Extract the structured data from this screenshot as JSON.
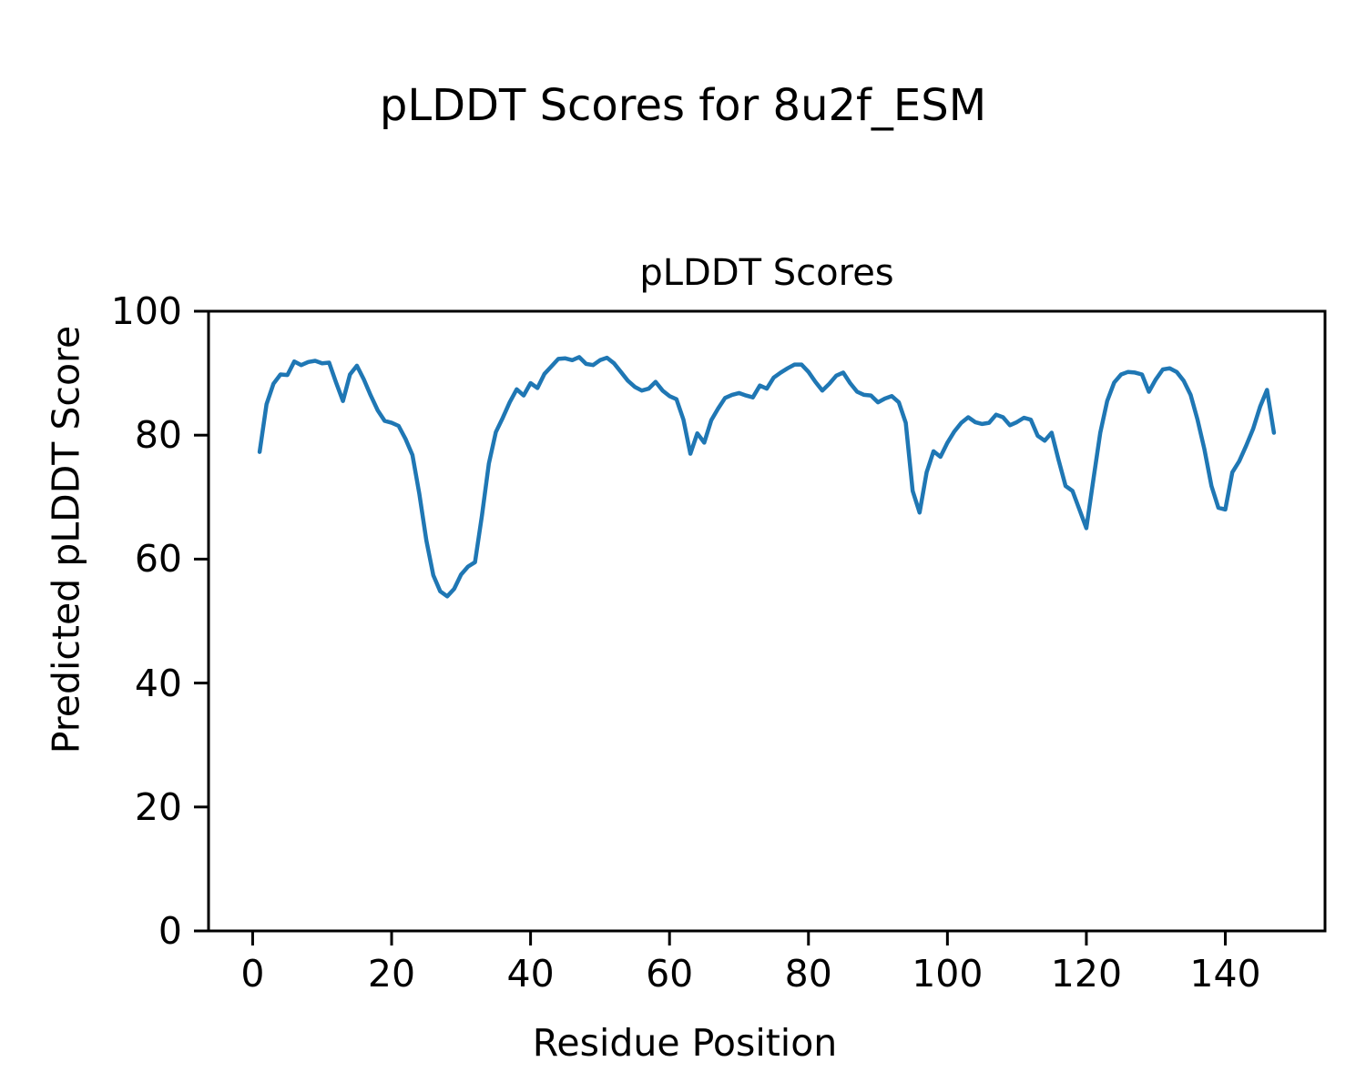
{
  "figure": {
    "suptitle": "pLDDT Scores for 8u2f_ESM"
  },
  "chart_data": {
    "type": "line",
    "title": "pLDDT Scores",
    "xlabel": "Residue Position",
    "ylabel": "Predicted pLDDT Score",
    "series_name": "pLDDT",
    "x_start": 1,
    "x_step": 1,
    "n_points": 147,
    "values": [
      77.3,
      85.0,
      88.3,
      89.8,
      89.7,
      91.9,
      91.3,
      91.8,
      92.0,
      91.6,
      91.7,
      88.5,
      85.5,
      89.8,
      91.2,
      89.0,
      86.4,
      84.0,
      82.3,
      82.0,
      81.5,
      79.4,
      76.8,
      70.5,
      63.0,
      57.4,
      54.8,
      54.0,
      55.2,
      57.5,
      58.8,
      59.5,
      67.0,
      75.4,
      80.5,
      82.8,
      85.3,
      87.4,
      86.4,
      88.4,
      87.6,
      89.9,
      91.1,
      92.3,
      92.4,
      92.1,
      92.6,
      91.5,
      91.3,
      92.1,
      92.5,
      91.6,
      90.2,
      88.8,
      87.8,
      87.2,
      87.5,
      88.6,
      87.2,
      86.3,
      85.8,
      82.5,
      77.0,
      80.3,
      78.8,
      82.4,
      84.3,
      86.0,
      86.5,
      86.8,
      86.4,
      86.1,
      88.0,
      87.5,
      89.3,
      90.1,
      90.8,
      91.4,
      91.4,
      90.2,
      88.6,
      87.2,
      88.3,
      89.6,
      90.1,
      88.4,
      87.0,
      86.5,
      86.4,
      85.3,
      85.9,
      86.3,
      85.3,
      82.0,
      71.0,
      67.5,
      74.0,
      77.4,
      76.5,
      78.8,
      80.6,
      82.0,
      82.9,
      82.1,
      81.8,
      82.0,
      83.3,
      82.9,
      81.6,
      82.1,
      82.8,
      82.5,
      79.9,
      79.1,
      80.4,
      76.0,
      71.8,
      71.0,
      68.0,
      65.0,
      72.8,
      80.4,
      85.5,
      88.5,
      89.8,
      90.2,
      90.1,
      89.8,
      87.0,
      89.0,
      90.6,
      90.8,
      90.2,
      88.8,
      86.5,
      82.5,
      77.7,
      71.8,
      68.3,
      68.0,
      74.0,
      75.8,
      78.3,
      81.0,
      84.6,
      87.3,
      80.4
    ],
    "xlim": [
      -6.35,
      154.35
    ],
    "ylim": [
      0,
      100
    ],
    "xticks": [
      0,
      20,
      40,
      60,
      80,
      100,
      120,
      140
    ],
    "yticks": [
      0,
      20,
      40,
      60,
      80,
      100
    ],
    "grid": false,
    "legend": null,
    "line_color": "#1f77b4",
    "axis_color": "#000000",
    "background_color": "#ffffff"
  }
}
